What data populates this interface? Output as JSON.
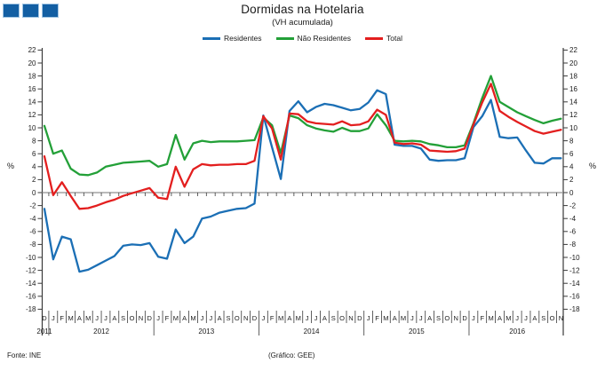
{
  "logo": {
    "square_count": 3,
    "square_fill": "#135fa3",
    "square_border": "#a3c6e3"
  },
  "header": {
    "title": "Dormidas na Hotelaria",
    "subtitle": "(VH acumulada)"
  },
  "axes": {
    "unit_label": "%",
    "ymin": -18,
    "ymax": 22,
    "ytick_step": 2,
    "labels_both_sides": true
  },
  "footer": {
    "source": "Fonte: INE",
    "credit": "(Gráfico: GEE)"
  },
  "chart_data": {
    "type": "line",
    "title": "Dormidas na Hotelaria",
    "subtitle": "(VH acumulada)",
    "xlabel": "",
    "ylabel": "%",
    "ylim": [
      -18,
      22
    ],
    "grid": false,
    "legend_position": "top",
    "x_month_labels": [
      "D",
      "J",
      "F",
      "M",
      "A",
      "M",
      "J",
      "J",
      "A",
      "S",
      "O",
      "N",
      "D",
      "J",
      "F",
      "M",
      "A",
      "M",
      "J",
      "J",
      "A",
      "S",
      "O",
      "N",
      "D",
      "J",
      "F",
      "M",
      "A",
      "M",
      "J",
      "J",
      "A",
      "S",
      "O",
      "N",
      "D",
      "J",
      "F",
      "M",
      "A",
      "M",
      "J",
      "J",
      "A",
      "S",
      "O",
      "N",
      "D",
      "J",
      "F",
      "M",
      "A",
      "M",
      "J",
      "J",
      "A",
      "S",
      "O",
      "N"
    ],
    "years": [
      {
        "label": "2011",
        "from": 0,
        "to": 0
      },
      {
        "label": "2012",
        "from": 1,
        "to": 12
      },
      {
        "label": "2013",
        "from": 13,
        "to": 24
      },
      {
        "label": "2014",
        "from": 25,
        "to": 36
      },
      {
        "label": "2015",
        "from": 37,
        "to": 48
      },
      {
        "label": "2016",
        "from": 49,
        "to": 59
      }
    ],
    "series": [
      {
        "name": "Residentes",
        "color": "#1b6fb5",
        "values": [
          -2.5,
          -10.3,
          -6.8,
          -7.2,
          -12.2,
          -11.9,
          -11.2,
          -10.5,
          -9.8,
          -8.2,
          -8.0,
          -8.1,
          -7.8,
          -9.9,
          -10.2,
          -5.7,
          -7.8,
          -6.8,
          -4.0,
          -3.7,
          -3.1,
          -2.8,
          -2.5,
          -2.4,
          -1.7,
          11.9,
          7.0,
          2.1,
          12.6,
          14.1,
          12.4,
          13.2,
          13.7,
          13.5,
          13.1,
          12.7,
          12.9,
          13.9,
          15.8,
          15.2,
          7.4,
          7.2,
          7.2,
          6.8,
          5.1,
          4.9,
          5.0,
          5.0,
          5.3,
          10.1,
          11.8,
          14.3,
          8.6,
          8.4,
          8.5,
          6.5,
          4.6,
          4.5,
          5.3,
          5.3
        ]
      },
      {
        "name": "Não Residentes",
        "color": "#23a038",
        "values": [
          10.3,
          6.0,
          6.5,
          3.7,
          2.8,
          2.7,
          3.1,
          4.0,
          4.3,
          4.6,
          4.7,
          4.8,
          4.9,
          4.0,
          4.4,
          8.9,
          5.1,
          7.6,
          8.0,
          7.8,
          7.9,
          7.9,
          7.9,
          8.0,
          8.1,
          11.6,
          10.4,
          6.1,
          11.9,
          11.5,
          10.4,
          9.9,
          9.6,
          9.4,
          10.0,
          9.5,
          9.5,
          9.9,
          12.1,
          10.4,
          8.0,
          7.9,
          8.0,
          7.9,
          7.5,
          7.3,
          7.0,
          7.0,
          7.3,
          10.7,
          14.6,
          18.0,
          14.0,
          13.2,
          12.4,
          11.8,
          11.2,
          10.7,
          11.1,
          11.4
        ]
      },
      {
        "name": "Total",
        "color": "#e31f1f",
        "values": [
          5.6,
          -0.4,
          1.6,
          -0.5,
          -2.5,
          -2.4,
          -2.0,
          -1.5,
          -1.1,
          -0.5,
          -0.1,
          0.3,
          0.7,
          -0.8,
          -1.0,
          4.0,
          0.9,
          3.6,
          4.4,
          4.2,
          4.3,
          4.3,
          4.4,
          4.4,
          4.9,
          11.8,
          9.9,
          5.1,
          12.2,
          12.1,
          11.0,
          10.7,
          10.6,
          10.5,
          11.0,
          10.4,
          10.5,
          11.0,
          12.8,
          12.0,
          7.7,
          7.5,
          7.6,
          7.4,
          6.5,
          6.4,
          6.3,
          6.4,
          6.8,
          10.5,
          13.9,
          16.8,
          12.6,
          11.7,
          10.9,
          10.2,
          9.5,
          9.1,
          9.4,
          9.7
        ]
      }
    ]
  }
}
